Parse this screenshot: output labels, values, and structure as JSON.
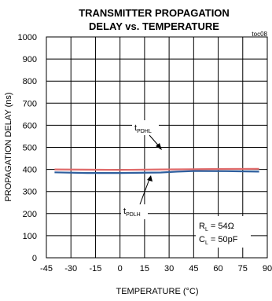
{
  "chart_data": {
    "type": "line",
    "title_line1": "TRANSMITTER PROPAGATION",
    "title_line2": "DELAY vs. TEMPERATURE",
    "figure_id": "toc08",
    "xlabel": "TEMPERATURE (°C)",
    "ylabel": "PROPAGATION DELAY (ns)",
    "xlim": [
      -45,
      90
    ],
    "ylim": [
      0,
      1000
    ],
    "x_ticks": [
      -45,
      -30,
      -15,
      0,
      15,
      30,
      45,
      60,
      75,
      90
    ],
    "x_tick_labels": [
      "-45",
      "-30",
      "-15",
      "0",
      "15",
      "30",
      "45",
      "60",
      "75",
      "90"
    ],
    "y_ticks": [
      0,
      100,
      200,
      300,
      400,
      500,
      600,
      700,
      800,
      900,
      1000
    ],
    "y_tick_labels": [
      "0",
      "100",
      "200",
      "300",
      "400",
      "500",
      "600",
      "700",
      "800",
      "900",
      "1000"
    ],
    "grid": true,
    "series": [
      {
        "name": "tPDHL",
        "label_main": "t",
        "label_sub": "PDHL",
        "color": "#e06a6a",
        "x": [
          -40,
          -20,
          0,
          25,
          45,
          65,
          85
        ],
        "y": [
          400,
          399,
          398,
          400,
          401,
          402,
          403
        ]
      },
      {
        "name": "tPDLH",
        "label_main": "t",
        "label_sub": "PDLH",
        "color": "#2f5f9e",
        "x": [
          -40,
          -20,
          0,
          25,
          35,
          45,
          65,
          85
        ],
        "y": [
          387,
          384,
          384,
          386,
          390,
          393,
          392,
          390
        ]
      }
    ],
    "conditions": {
      "rl_main": "R",
      "rl_sub": "L",
      "rl_value": " = 54Ω",
      "cl_main": "C",
      "cl_sub": "L",
      "cl_value": " = 50pF"
    }
  }
}
